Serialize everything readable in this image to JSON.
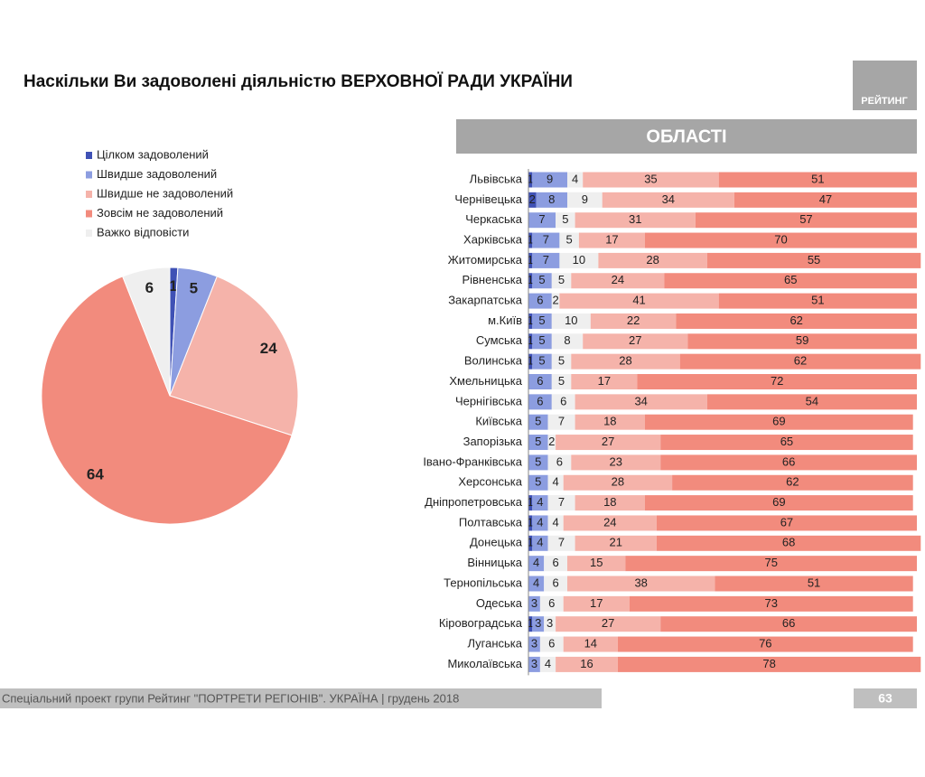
{
  "header": {
    "title": "Наскільки Ви задоволені діяльністю ВЕРХОВНОЇ РАДИ УКРАЇНИ",
    "logo": "РЕЙТИНГ"
  },
  "chart_data": [
    {
      "type": "pie",
      "categories": [
        "Цілком задоволений",
        "Швидше задоволений",
        "Швидше не задоволений",
        "Зовсім не задоволений",
        "Важко відповісти"
      ],
      "values": [
        1,
        5,
        24,
        64,
        6
      ],
      "colors": [
        "#3f51b5",
        "#8c9de0",
        "#f5b3aa",
        "#f28b7d",
        "#efefef"
      ],
      "legend": "top-left"
    },
    {
      "type": "bar",
      "orientation": "horizontal",
      "stacked": true,
      "title": "ОБЛАСТІ",
      "categories": [
        "Львівська",
        "Чернівецька",
        "Черкаська",
        "Харківська",
        "Житомирська",
        "Рівненська",
        "Закарпатська",
        "м.Київ",
        "Сумська",
        "Волинська",
        "Хмельницька",
        "Чернігівська",
        "Київська",
        "Запорізька",
        "Івано-Франківська",
        "Херсонська",
        "Дніпропетровська",
        "Полтавська",
        "Донецька",
        "Вінницька",
        "Тернопільська",
        "Одеська",
        "Кіровоградська",
        "Луганська",
        "Миколаївська"
      ],
      "xlim": [
        0,
        100
      ],
      "series": [
        {
          "color": "#3f51b5",
          "values": [
            1,
            2,
            null,
            1,
            1,
            1,
            null,
            1,
            1,
            1,
            null,
            null,
            null,
            null,
            null,
            null,
            1,
            1,
            1,
            null,
            null,
            null,
            1,
            null,
            null
          ]
        },
        {
          "color": "#8c9de0",
          "values": [
            9,
            8,
            7,
            7,
            7,
            5,
            6,
            5,
            5,
            5,
            6,
            6,
            5,
            5,
            5,
            5,
            4,
            4,
            4,
            4,
            4,
            3,
            3,
            3,
            3
          ]
        },
        {
          "color": "#efefef",
          "values": [
            4,
            9,
            5,
            5,
            10,
            5,
            2,
            10,
            8,
            5,
            5,
            6,
            7,
            2,
            6,
            4,
            7,
            4,
            7,
            6,
            6,
            6,
            3,
            6,
            4
          ]
        },
        {
          "color": "#f5b3aa",
          "values": [
            35,
            34,
            31,
            17,
            28,
            24,
            41,
            22,
            27,
            28,
            17,
            34,
            18,
            27,
            23,
            28,
            18,
            24,
            21,
            15,
            38,
            17,
            27,
            14,
            16
          ]
        },
        {
          "color": "#f28b7d",
          "values": [
            51,
            47,
            57,
            70,
            55,
            65,
            51,
            62,
            59,
            62,
            72,
            54,
            69,
            65,
            66,
            62,
            69,
            67,
            68,
            75,
            51,
            73,
            66,
            76,
            78
          ]
        }
      ]
    }
  ],
  "footer": {
    "text": "Спеціальний проект групи Рейтинг \"ПОРТРЕТИ РЕГІОНІВ\". УКРАЇНА | грудень 2018",
    "page": "63"
  }
}
